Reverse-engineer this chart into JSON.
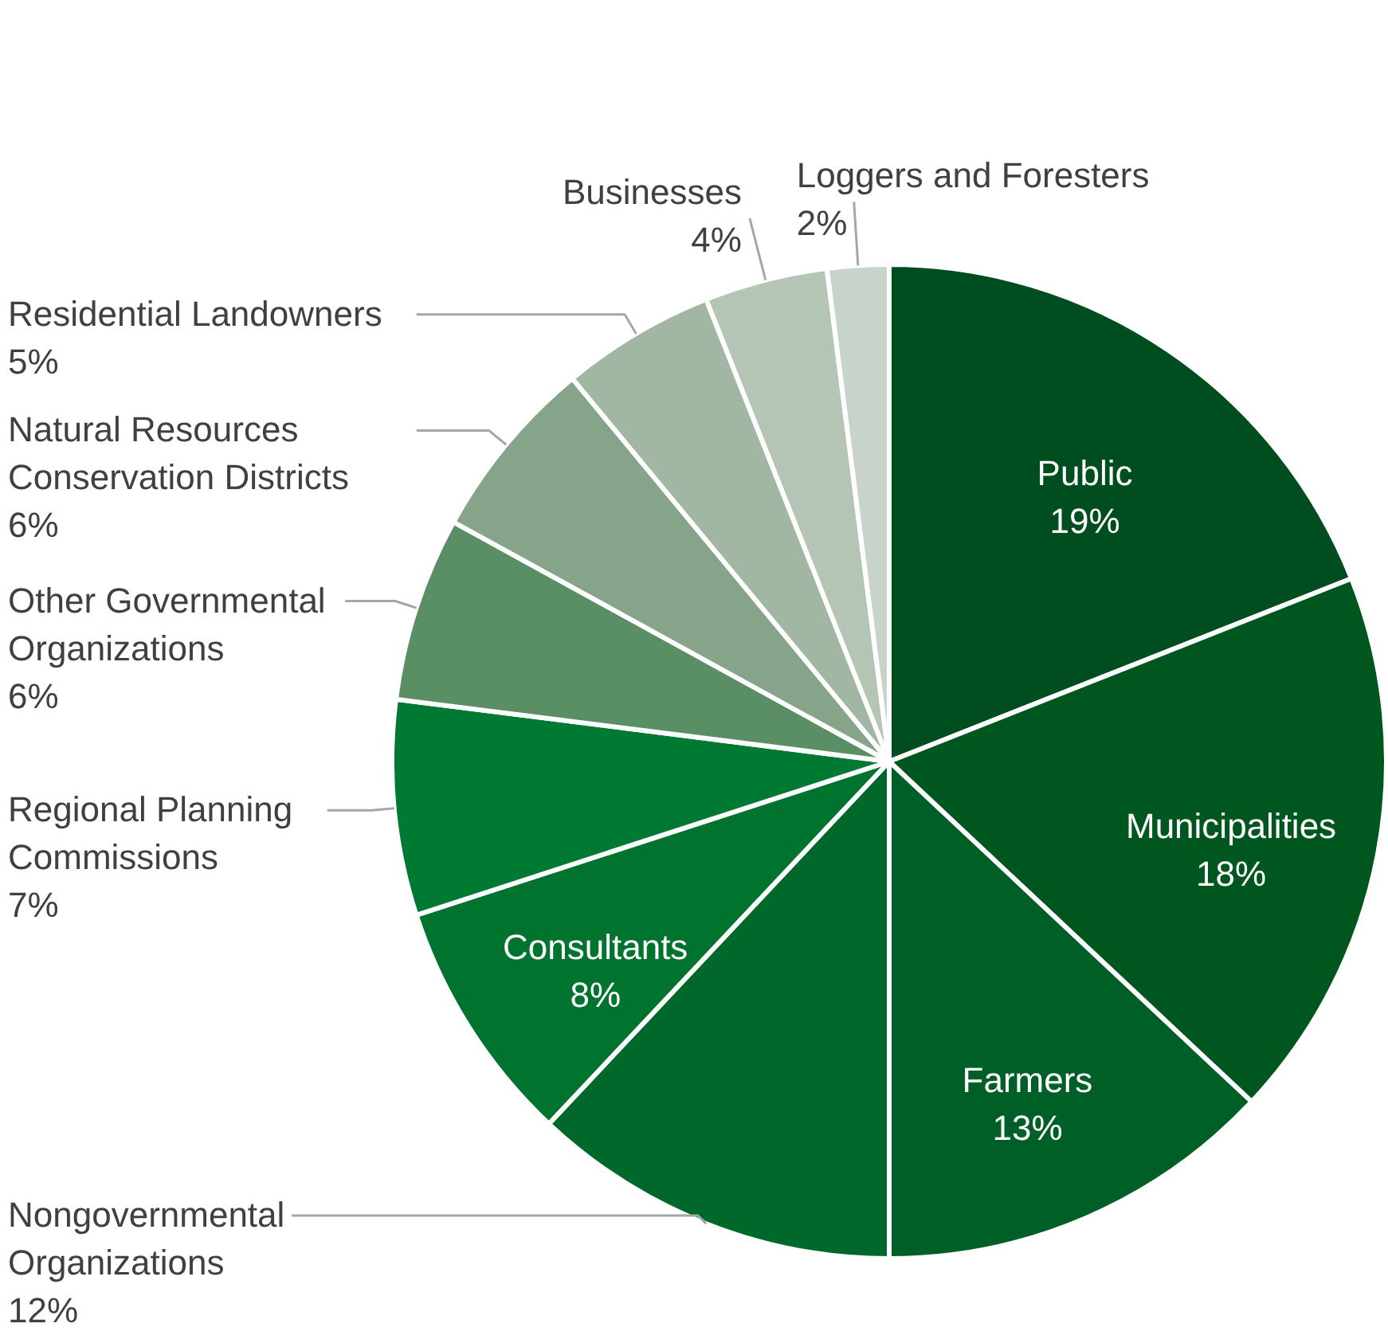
{
  "chart_data": {
    "type": "pie",
    "categories": [
      "Public",
      "Municipalities",
      "Farmers",
      "Nongovernmental Organizations",
      "Consultants",
      "Regional Planning Commissions",
      "Other Governmental Organizations",
      "Natural Resources Conservation Districts",
      "Residential Landowners",
      "Businesses",
      "Loggers and Foresters"
    ],
    "values": [
      19,
      18,
      13,
      12,
      8,
      7,
      6,
      6,
      5,
      4,
      2
    ],
    "value_labels": [
      "19%",
      "18%",
      "13%",
      "12%",
      "8%",
      "7%",
      "6%",
      "6%",
      "5%",
      "4%",
      "2%"
    ],
    "colors": [
      "#004d1f",
      "#00561f",
      "#005f27",
      "#00682b",
      "#00732f",
      "#007a33",
      "#5a8f66",
      "#86a48a",
      "#a1b7a3",
      "#b4c5b6",
      "#c8d3ca"
    ]
  }
}
